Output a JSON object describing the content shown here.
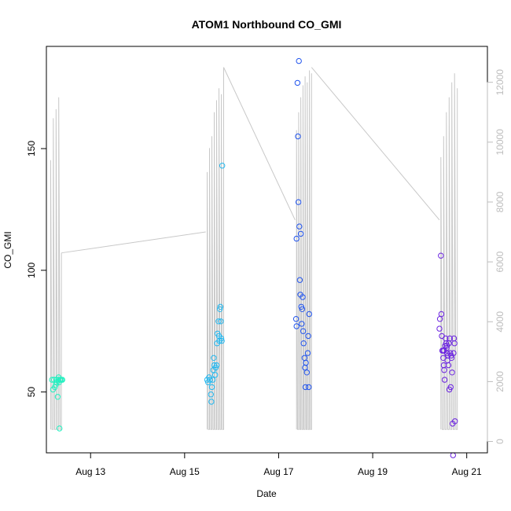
{
  "chart_data": {
    "type": "scatter",
    "title": "ATOM1 Northbound CO_GMI",
    "xlabel": "Date",
    "ylabel": "CO_GMI",
    "x_ticks": [
      "Aug 13",
      "Aug 15",
      "Aug 17",
      "Aug 19",
      "Aug 21"
    ],
    "y_ticks": [
      50,
      100,
      150
    ],
    "y2_ticks": [
      0,
      2000,
      4000,
      6000,
      8000,
      10000,
      12000
    ],
    "xlim": [
      12.06,
      21.44
    ],
    "ylim": [
      25,
      192
    ],
    "y2lim": [
      -380,
      13200
    ],
    "grid": false,
    "colors": {
      "altitude_line": "#c8c8c8",
      "flight1": "#22f0c0",
      "flight2": "#22b8f0",
      "flight3": "#2255ee",
      "flight4": "#6a22e0"
    },
    "series": [
      {
        "color": "#22f0c0",
        "points": [
          [
            12.18,
            55
          ],
          [
            12.2,
            51
          ],
          [
            12.22,
            55
          ],
          [
            12.24,
            52
          ],
          [
            12.26,
            53
          ],
          [
            12.27,
            55
          ],
          [
            12.28,
            54
          ],
          [
            12.3,
            48
          ],
          [
            12.31,
            55
          ],
          [
            12.32,
            56
          ],
          [
            12.33,
            54
          ],
          [
            12.34,
            35
          ],
          [
            12.35,
            55
          ],
          [
            12.36,
            55
          ],
          [
            12.38,
            55
          ],
          [
            12.4,
            55
          ]
        ]
      },
      {
        "color": "#22b8f0",
        "points": [
          [
            15.48,
            55
          ],
          [
            15.5,
            54
          ],
          [
            15.52,
            56
          ],
          [
            15.54,
            55
          ],
          [
            15.56,
            49
          ],
          [
            15.57,
            46
          ],
          [
            15.58,
            52
          ],
          [
            15.6,
            55
          ],
          [
            15.61,
            59
          ],
          [
            15.62,
            64
          ],
          [
            15.63,
            61
          ],
          [
            15.65,
            57
          ],
          [
            15.66,
            60
          ],
          [
            15.68,
            61
          ],
          [
            15.69,
            70
          ],
          [
            15.7,
            74
          ],
          [
            15.72,
            79
          ],
          [
            15.73,
            73
          ],
          [
            15.74,
            71
          ],
          [
            15.75,
            84
          ],
          [
            15.76,
            85
          ],
          [
            15.77,
            79
          ],
          [
            15.78,
            72
          ],
          [
            15.79,
            71
          ],
          [
            15.8,
            143
          ]
        ]
      },
      {
        "color": "#2255ee",
        "points": [
          [
            17.37,
            80
          ],
          [
            17.38,
            113
          ],
          [
            17.4,
            177
          ],
          [
            17.41,
            155
          ],
          [
            17.42,
            128
          ],
          [
            17.43,
            186
          ],
          [
            17.44,
            118
          ],
          [
            17.45,
            96
          ],
          [
            17.46,
            90
          ],
          [
            17.47,
            115
          ],
          [
            17.48,
            85
          ],
          [
            17.5,
            84
          ],
          [
            17.51,
            89
          ],
          [
            17.52,
            75
          ],
          [
            17.53,
            70
          ],
          [
            17.55,
            64
          ],
          [
            17.56,
            60
          ],
          [
            17.57,
            52
          ],
          [
            17.58,
            62
          ],
          [
            17.6,
            58
          ],
          [
            17.62,
            66
          ],
          [
            17.63,
            73
          ],
          [
            17.64,
            52
          ],
          [
            17.65,
            82
          ],
          [
            17.38,
            77
          ],
          [
            17.49,
            78
          ]
        ]
      },
      {
        "color": "#6a22e0",
        "points": [
          [
            20.42,
            76
          ],
          [
            20.43,
            80
          ],
          [
            20.45,
            106
          ],
          [
            20.46,
            82
          ],
          [
            20.47,
            73
          ],
          [
            20.48,
            67
          ],
          [
            20.5,
            64
          ],
          [
            20.51,
            61
          ],
          [
            20.52,
            59
          ],
          [
            20.53,
            55
          ],
          [
            20.55,
            72
          ],
          [
            20.56,
            70
          ],
          [
            20.57,
            68
          ],
          [
            20.58,
            66
          ],
          [
            20.59,
            63
          ],
          [
            20.6,
            65
          ],
          [
            20.61,
            61
          ],
          [
            20.62,
            70
          ],
          [
            20.63,
            51
          ],
          [
            20.64,
            72
          ],
          [
            20.65,
            66
          ],
          [
            20.66,
            52
          ],
          [
            20.67,
            65
          ],
          [
            20.68,
            64
          ],
          [
            20.69,
            58
          ],
          [
            20.7,
            37
          ],
          [
            20.71,
            24
          ],
          [
            20.72,
            66
          ],
          [
            20.73,
            72
          ],
          [
            20.74,
            70
          ],
          [
            20.75,
            38
          ],
          [
            20.5,
            67
          ],
          [
            20.54,
            69
          ],
          [
            20.58,
            69
          ],
          [
            20.52,
            67
          ]
        ]
      }
    ],
    "line_series": {
      "axis": "right",
      "color": "#c8c8c8",
      "segments": [
        {
          "x0": 12.15,
          "x1": 12.38,
          "count": 5,
          "tops": [
            9400,
            10800,
            11100,
            11500,
            6300
          ],
          "base": 400
        },
        {
          "x0": 15.48,
          "x1": 15.83,
          "count": 8,
          "tops": [
            9000,
            9800,
            10200,
            11000,
            11400,
            11800,
            11600,
            12500
          ],
          "base": 400
        },
        {
          "x0": 17.38,
          "x1": 17.7,
          "count": 8,
          "tops": [
            10400,
            11000,
            11500,
            11900,
            12200,
            12000,
            12400,
            12300
          ],
          "base": 400
        },
        {
          "x0": 20.45,
          "x1": 20.8,
          "count": 7,
          "tops": [
            9500,
            10200,
            11000,
            11500,
            12000,
            12300,
            11800
          ],
          "base": 400
        }
      ],
      "connectors": [
        [
          [
            12.38,
            6300
          ],
          [
            15.45,
            7000
          ]
        ],
        [
          [
            15.83,
            12500
          ],
          [
            17.35,
            7400
          ]
        ],
        [
          [
            17.7,
            12500
          ],
          [
            20.42,
            7400
          ]
        ]
      ]
    }
  }
}
